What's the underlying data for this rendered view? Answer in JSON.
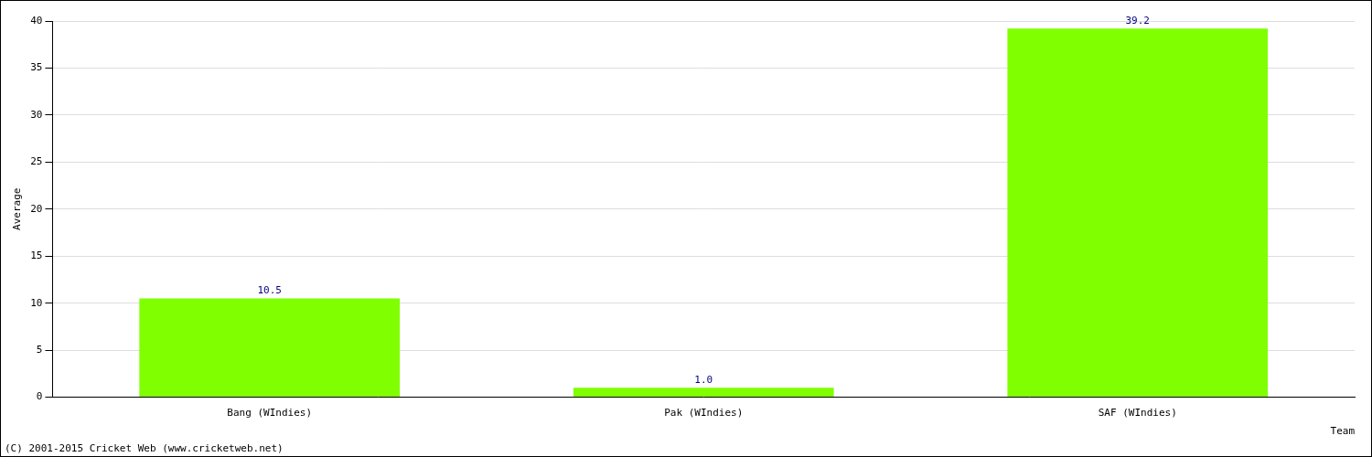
{
  "chart_data": {
    "type": "bar",
    "x_label": "Team",
    "y_label": "Average",
    "categories": [
      "Bang (WIndies)",
      "Pak (WIndies)",
      "SAF (WIndies)"
    ],
    "values": [
      10.5,
      1.0,
      39.2
    ],
    "value_labels": [
      "10.5",
      "1.0",
      "39.2"
    ],
    "data_labels": true,
    "color": "#80ff00",
    "ylim": [
      0,
      40
    ],
    "yticks": [
      0,
      5,
      10,
      15,
      20,
      25,
      30,
      35,
      40
    ],
    "grid": true,
    "annotations": [
      "(C) 2001-2015 Cricket Web (www.cricketweb.net)"
    ]
  }
}
